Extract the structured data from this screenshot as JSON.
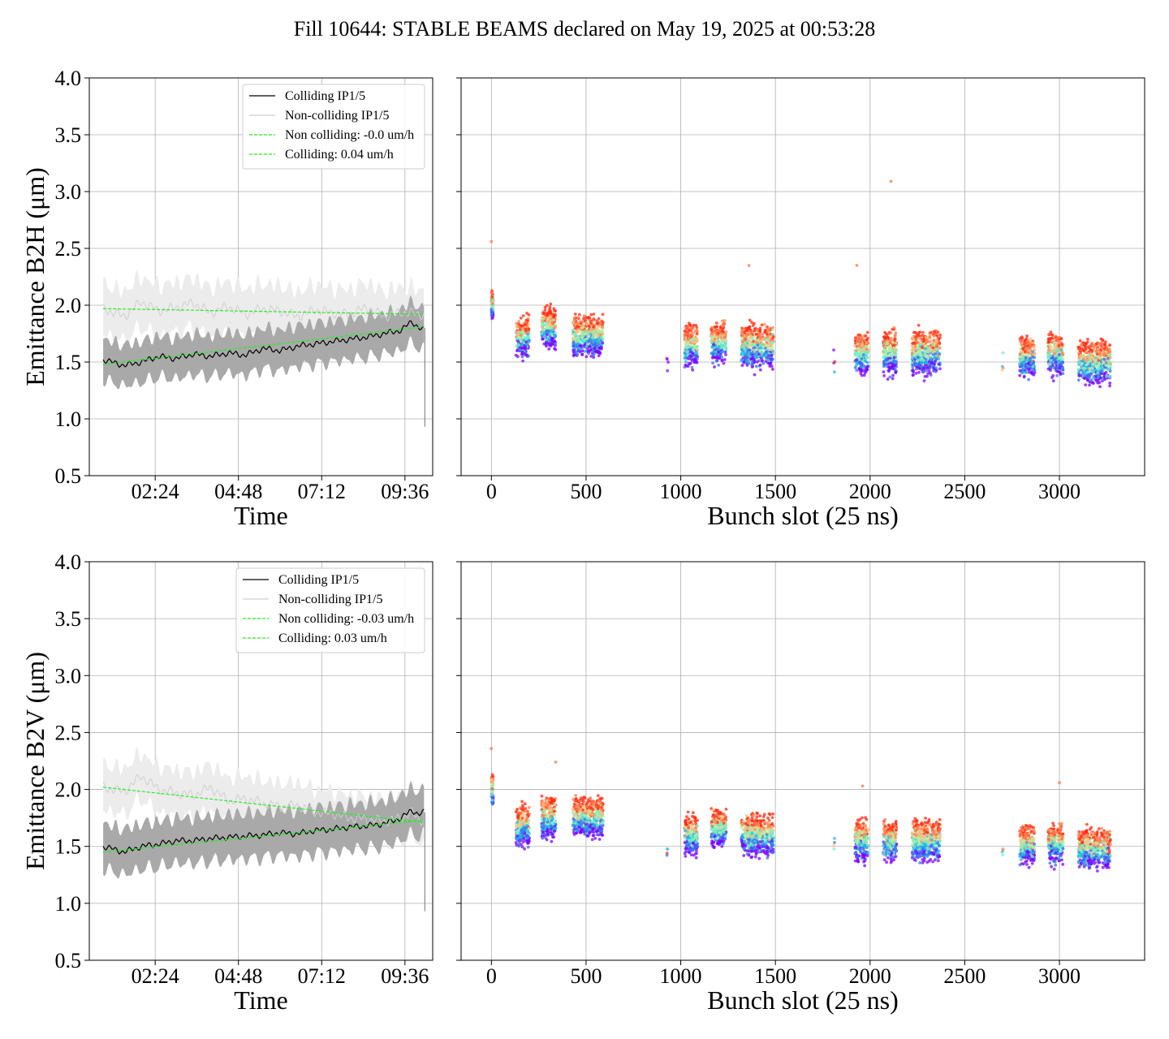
{
  "title": "Fill 10644: STABLE BEAMS declared on May 19, 2025 at 00:53:28",
  "colors": {
    "colliding": "#000000",
    "colliding_band": "#a9a9a9",
    "noncolliding": "#cfcfcf",
    "noncolliding_band": "#ececec",
    "fit": "#22ee22",
    "grid": "#b0b0b0",
    "scatter_colormap": [
      "#7f00ff",
      "#3c6df0",
      "#1fb7e6",
      "#6ef0c8",
      "#b4f0a0",
      "#f8c080",
      "#ff7f50",
      "#ff2a10"
    ]
  },
  "chart_data": [
    {
      "type": "line",
      "panel": "top-left",
      "xlabel": "Time",
      "ylabel": "Emittance B2H (μm)",
      "ylim": [
        0.5,
        4.0
      ],
      "yticks": [
        "0.5",
        "1.0",
        "1.5",
        "2.0",
        "2.5",
        "3.0",
        "3.5",
        "4.0"
      ],
      "xlim_hours": [
        0.5,
        10.4
      ],
      "xticks": [
        {
          "hours": 2.4,
          "label": "02:24"
        },
        {
          "hours": 4.8,
          "label": "04:48"
        },
        {
          "hours": 7.2,
          "label": "07:12"
        },
        {
          "hours": 9.6,
          "label": "09:36"
        }
      ],
      "grid": true,
      "legend_position": "upper-right",
      "legend": [
        "Colliding IP1/5",
        "Non-colliding IP1/5",
        "Non colliding: -0.0 um/h",
        "Colliding: 0.04 um/h"
      ],
      "series": [
        {
          "name": "Colliding IP1/5",
          "x_hours": [
            0.9,
            1.5,
            2.0,
            2.5,
            3.0,
            3.5,
            4.0,
            4.5,
            5.0,
            5.5,
            6.0,
            6.5,
            7.0,
            7.5,
            8.0,
            8.5,
            9.0,
            9.5,
            9.8,
            10.0,
            10.15
          ],
          "y": [
            1.52,
            1.47,
            1.5,
            1.55,
            1.53,
            1.57,
            1.55,
            1.58,
            1.56,
            1.62,
            1.6,
            1.64,
            1.66,
            1.68,
            1.7,
            1.72,
            1.75,
            1.78,
            1.86,
            1.8,
            1.78
          ],
          "band_half_width": 0.18
        },
        {
          "name": "Non-colliding IP1/5",
          "x_hours": [
            0.9,
            1.5,
            2.0,
            2.5,
            3.0,
            3.5,
            4.0,
            4.5,
            5.0,
            5.5,
            6.0,
            6.5,
            7.0,
            7.5,
            8.0,
            8.5,
            9.0,
            9.5,
            9.8,
            10.0,
            10.15
          ],
          "y": [
            1.97,
            1.9,
            2.03,
            1.95,
            1.98,
            2.02,
            1.93,
            1.99,
            1.92,
            1.97,
            1.95,
            1.9,
            1.96,
            1.93,
            1.92,
            1.98,
            1.9,
            1.94,
            1.93,
            1.92,
            1.92
          ],
          "band_half_width": 0.22
        },
        {
          "name": "Non colliding: -0.0 um/h",
          "x_hours": [
            0.9,
            10.15
          ],
          "y": [
            1.97,
            1.92
          ]
        },
        {
          "name": "Colliding: 0.04 um/h",
          "x_hours": [
            0.9,
            10.15
          ],
          "y": [
            1.48,
            1.81
          ]
        }
      ]
    },
    {
      "type": "scatter",
      "panel": "top-right",
      "xlabel": "Bunch slot (25 ns)",
      "ylabel": "",
      "xlim": [
        -160,
        3450
      ],
      "ylim": [
        0.5,
        4.0
      ],
      "xticks": [
        "0",
        "500",
        "1000",
        "1500",
        "2000",
        "2500",
        "3000"
      ],
      "grid": true,
      "color_by": "time (early violet → late red)",
      "trains": [
        {
          "x_from": 0,
          "x_to": 10,
          "y_center": 2.0,
          "y_spread": 0.2
        },
        {
          "x_from": 130,
          "x_to": 200,
          "y_center": 1.72,
          "y_spread": 0.3
        },
        {
          "x_from": 265,
          "x_to": 340,
          "y_center": 1.8,
          "y_spread": 0.3
        },
        {
          "x_from": 430,
          "x_to": 590,
          "y_center": 1.73,
          "y_spread": 0.3
        },
        {
          "x_from": 1020,
          "x_to": 1090,
          "y_center": 1.65,
          "y_spread": 0.3
        },
        {
          "x_from": 1160,
          "x_to": 1240,
          "y_center": 1.67,
          "y_spread": 0.3
        },
        {
          "x_from": 1320,
          "x_to": 1490,
          "y_center": 1.64,
          "y_spread": 0.32
        },
        {
          "x_from": 1920,
          "x_to": 1990,
          "y_center": 1.58,
          "y_spread": 0.32
        },
        {
          "x_from": 2070,
          "x_to": 2140,
          "y_center": 1.58,
          "y_spread": 0.32
        },
        {
          "x_from": 2220,
          "x_to": 2370,
          "y_center": 1.58,
          "y_spread": 0.32
        },
        {
          "x_from": 2790,
          "x_to": 2870,
          "y_center": 1.55,
          "y_spread": 0.3
        },
        {
          "x_from": 2940,
          "x_to": 3020,
          "y_center": 1.56,
          "y_spread": 0.3
        },
        {
          "x_from": 3100,
          "x_to": 3270,
          "y_center": 1.5,
          "y_spread": 0.32
        }
      ],
      "outliers": [
        {
          "x": 0,
          "y": 2.56
        },
        {
          "x": 2110,
          "y": 3.09
        },
        {
          "x": 1360,
          "y": 2.35
        },
        {
          "x": 1930,
          "y": 2.35
        }
      ]
    },
    {
      "type": "line",
      "panel": "bottom-left",
      "xlabel": "Time",
      "ylabel": "Emittance B2V (μm)",
      "ylim": [
        0.5,
        4.0
      ],
      "yticks": [
        "0.5",
        "1.0",
        "1.5",
        "2.0",
        "2.5",
        "3.0",
        "3.5",
        "4.0"
      ],
      "xlim_hours": [
        0.5,
        10.4
      ],
      "xticks": [
        {
          "hours": 2.4,
          "label": "02:24"
        },
        {
          "hours": 4.8,
          "label": "04:48"
        },
        {
          "hours": 7.2,
          "label": "07:12"
        },
        {
          "hours": 9.6,
          "label": "09:36"
        }
      ],
      "grid": true,
      "legend_position": "upper-right",
      "legend": [
        "Colliding IP1/5",
        "Non-colliding IP1/5",
        "Non colliding: -0.03 um/h",
        "Colliding: 0.03 um/h"
      ],
      "series": [
        {
          "name": "Colliding IP1/5",
          "x_hours": [
            0.9,
            1.5,
            2.0,
            2.5,
            3.0,
            3.5,
            4.0,
            4.5,
            5.0,
            5.5,
            6.0,
            6.5,
            7.0,
            7.5,
            8.0,
            8.5,
            9.0,
            9.5,
            9.8,
            10.0,
            10.15
          ],
          "y": [
            1.5,
            1.45,
            1.5,
            1.52,
            1.55,
            1.55,
            1.57,
            1.58,
            1.59,
            1.6,
            1.62,
            1.61,
            1.64,
            1.65,
            1.67,
            1.68,
            1.7,
            1.75,
            1.82,
            1.78,
            1.8
          ],
          "band_half_width": 0.2
        },
        {
          "name": "Non-colliding IP1/5",
          "x_hours": [
            0.9,
            1.5,
            2.0,
            2.5,
            3.0,
            3.5,
            4.0,
            4.5,
            5.0,
            5.5,
            6.0,
            6.5,
            7.0,
            7.5,
            8.0,
            8.5,
            9.0,
            9.5,
            9.8,
            10.0,
            10.15
          ],
          "y": [
            2.02,
            1.98,
            2.12,
            2.0,
            1.97,
            1.95,
            2.02,
            1.9,
            1.92,
            1.88,
            1.85,
            1.86,
            1.8,
            1.79,
            1.75,
            1.74,
            1.72,
            1.75,
            1.8,
            1.74,
            1.72
          ],
          "band_half_width": 0.2
        },
        {
          "name": "Non colliding: -0.03 um/h",
          "x_hours": [
            0.9,
            10.15
          ],
          "y": [
            2.02,
            1.71
          ]
        },
        {
          "name": "Colliding: 0.03 um/h",
          "x_hours": [
            0.9,
            10.15
          ],
          "y": [
            1.45,
            1.73
          ]
        }
      ]
    },
    {
      "type": "scatter",
      "panel": "bottom-right",
      "xlabel": "Bunch slot (25 ns)",
      "ylabel": "",
      "xlim": [
        -160,
        3450
      ],
      "ylim": [
        0.5,
        4.0
      ],
      "xticks": [
        "0",
        "500",
        "1000",
        "1500",
        "2000",
        "2500",
        "3000"
      ],
      "grid": true,
      "color_by": "time (early violet → late red)",
      "trains": [
        {
          "x_from": 0,
          "x_to": 10,
          "y_center": 2.0,
          "y_spread": 0.25
        },
        {
          "x_from": 130,
          "x_to": 200,
          "y_center": 1.68,
          "y_spread": 0.3
        },
        {
          "x_from": 265,
          "x_to": 340,
          "y_center": 1.75,
          "y_spread": 0.32
        },
        {
          "x_from": 430,
          "x_to": 590,
          "y_center": 1.76,
          "y_spread": 0.3
        },
        {
          "x_from": 1020,
          "x_to": 1090,
          "y_center": 1.6,
          "y_spread": 0.28
        },
        {
          "x_from": 1160,
          "x_to": 1240,
          "y_center": 1.66,
          "y_spread": 0.28
        },
        {
          "x_from": 1320,
          "x_to": 1490,
          "y_center": 1.6,
          "y_spread": 0.3
        },
        {
          "x_from": 1920,
          "x_to": 1990,
          "y_center": 1.55,
          "y_spread": 0.3
        },
        {
          "x_from": 2070,
          "x_to": 2140,
          "y_center": 1.55,
          "y_spread": 0.3
        },
        {
          "x_from": 2220,
          "x_to": 2370,
          "y_center": 1.55,
          "y_spread": 0.3
        },
        {
          "x_from": 2790,
          "x_to": 2870,
          "y_center": 1.52,
          "y_spread": 0.28
        },
        {
          "x_from": 2940,
          "x_to": 3020,
          "y_center": 1.52,
          "y_spread": 0.28
        },
        {
          "x_from": 3100,
          "x_to": 3270,
          "y_center": 1.48,
          "y_spread": 0.3
        }
      ],
      "outliers": [
        {
          "x": 0,
          "y": 2.36
        },
        {
          "x": 3000,
          "y": 2.06
        },
        {
          "x": 1960,
          "y": 2.03
        },
        {
          "x": 340,
          "y": 2.24
        }
      ]
    }
  ]
}
